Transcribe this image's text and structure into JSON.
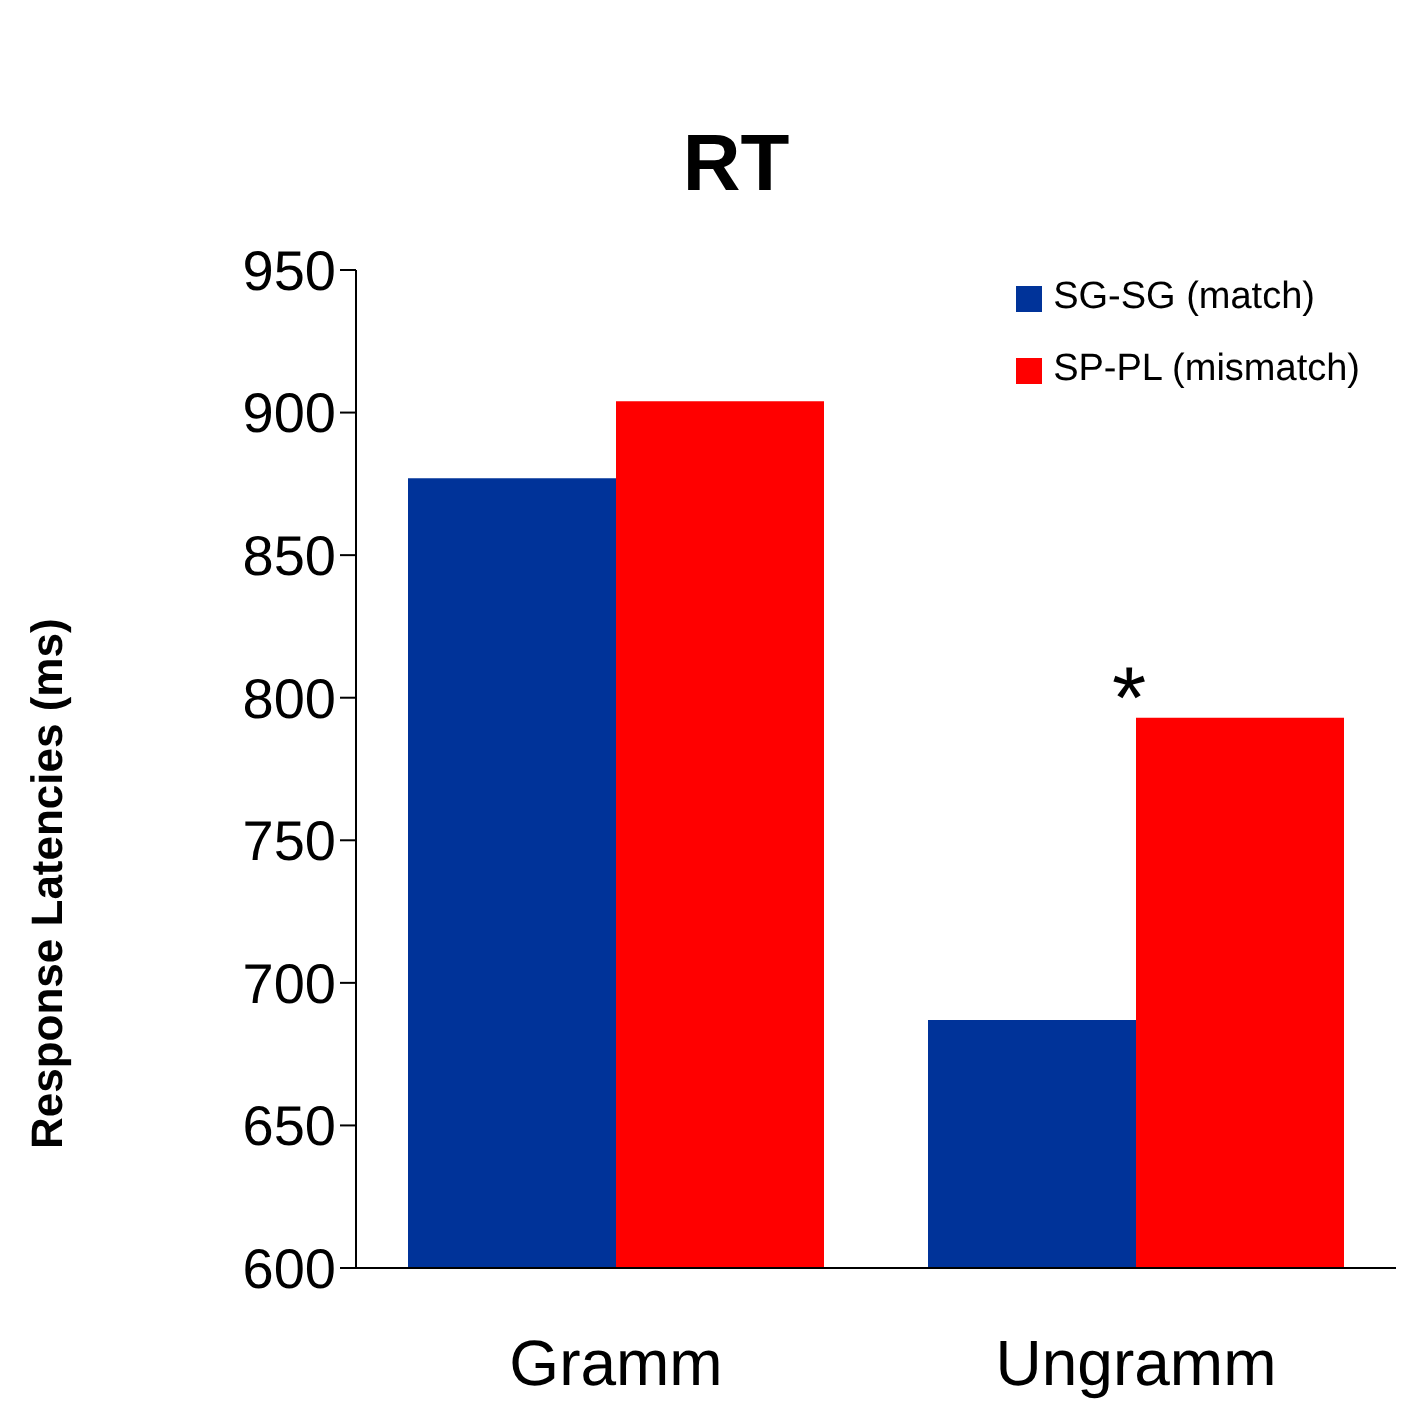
{
  "chart_data": {
    "type": "bar",
    "title": "RT",
    "ylabel": "Response Latencies (ms)",
    "categories": [
      "Gramm",
      "Ungramm"
    ],
    "series": [
      {
        "name": "SG-SG (match)",
        "color": "#003399",
        "values": [
          877,
          687
        ]
      },
      {
        "name": "SP-PL (mismatch)",
        "color": "#ff0000",
        "values": [
          904,
          793
        ]
      }
    ],
    "ylim": [
      600,
      950
    ],
    "yticks": [
      600,
      650,
      700,
      750,
      800,
      850,
      900,
      950
    ],
    "legend": "top right",
    "grid": false,
    "annotations": [
      "*"
    ]
  }
}
